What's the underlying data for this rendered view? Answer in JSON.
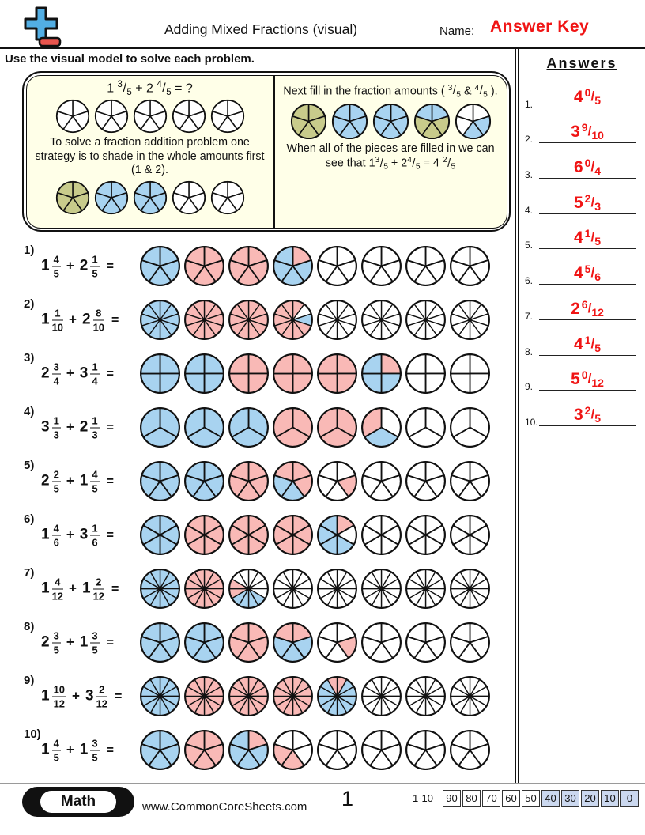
{
  "header": {
    "logo_icon": "plus-minus-math-logo",
    "title": "Adding Mixed Fractions (visual)",
    "name_label": "Name:",
    "answer_key": "Answer Key"
  },
  "instruction": "Use the visual model to solve each problem.",
  "symbols": {
    "plus": "+",
    "equals": "="
  },
  "answers_panel": {
    "heading": "Answers",
    "items": [
      {
        "n": "1.",
        "whole": "4",
        "num": "0",
        "den": "5"
      },
      {
        "n": "2.",
        "whole": "3",
        "num": "9",
        "den": "10"
      },
      {
        "n": "3.",
        "whole": "6",
        "num": "0",
        "den": "4"
      },
      {
        "n": "4.",
        "whole": "5",
        "num": "2",
        "den": "3"
      },
      {
        "n": "5.",
        "whole": "4",
        "num": "1",
        "den": "5"
      },
      {
        "n": "6.",
        "whole": "4",
        "num": "5",
        "den": "6"
      },
      {
        "n": "7.",
        "whole": "2",
        "num": "6",
        "den": "12"
      },
      {
        "n": "8.",
        "whole": "4",
        "num": "1",
        "den": "5"
      },
      {
        "n": "9.",
        "whole": "5",
        "num": "0",
        "den": "12"
      },
      {
        "n": "10.",
        "whole": "3",
        "num": "2",
        "den": "5"
      }
    ]
  },
  "example": {
    "title_segments": [
      {
        "t": "1 "
      },
      {
        "f": [
          "3",
          "5"
        ]
      },
      {
        "t": " + 2 "
      },
      {
        "f": [
          "4",
          "5"
        ]
      },
      {
        "t": " = ?"
      }
    ],
    "left_para": "To solve a fraction addition problem one strategy is to shade in the whole amounts first (1 & 2).",
    "right_para1_segments": [
      {
        "t": "Next fill in the fraction amounts ( "
      },
      {
        "f": [
          "3",
          "5"
        ]
      },
      {
        "t": " & "
      },
      {
        "f": [
          "4",
          "5"
        ]
      },
      {
        "t": " )."
      }
    ],
    "right_para2_segments": [
      {
        "t": "When all of the pieces are filled in we can see that 1"
      },
      {
        "f": [
          "3",
          "5"
        ]
      },
      {
        "t": " + 2"
      },
      {
        "f": [
          "4",
          "5"
        ]
      },
      {
        "t": " = 4 "
      },
      {
        "f": [
          "2",
          "5"
        ]
      }
    ],
    "rows": {
      "top": [
        "wwwww",
        "wwwww",
        "wwwww",
        "wwwww",
        "wwwww"
      ],
      "bottom": [
        "ooooo",
        "bbbbb",
        "bbbbb",
        "wwwww",
        "wwwww"
      ],
      "result": [
        "ooooo",
        "bbbbb",
        "bbbbb",
        "booob",
        "wbbww"
      ]
    }
  },
  "problems": [
    {
      "label": "1)",
      "whole1": "1",
      "num1": "4",
      "den1": "5",
      "whole2": "2",
      "num2": "1",
      "den2": "5",
      "circles": [
        "bbbbb",
        "ppppp",
        "ppppp",
        "pbbbb",
        "wwwww",
        "wwwww",
        "wwwww",
        "wwwww"
      ]
    },
    {
      "label": "2)",
      "whole1": "1",
      "num1": "1",
      "den1": "10",
      "whole2": "2",
      "num2": "8",
      "den2": "10",
      "circles": [
        "bbbbbbbbbb",
        "pppppppppp",
        "pppppppppp",
        "pwbppppppp",
        "wwwwwwwwww",
        "wwwwwwwwww",
        "wwwwwwwwww",
        "wwwwwwwwww"
      ]
    },
    {
      "label": "3)",
      "whole1": "2",
      "num1": "3",
      "den1": "4",
      "whole2": "3",
      "num2": "1",
      "den2": "4",
      "circles": [
        "bbbb",
        "bbbb",
        "pppp",
        "pppp",
        "pppp",
        "pbbb",
        "wwww",
        "wwww"
      ]
    },
    {
      "label": "4)",
      "whole1": "3",
      "num1": "1",
      "den1": "3",
      "whole2": "2",
      "num2": "1",
      "den2": "3",
      "circles": [
        "bbb",
        "bbb",
        "bbb",
        "ppp",
        "ppp",
        "wbp",
        "www",
        "www"
      ]
    },
    {
      "label": "5)",
      "whole1": "2",
      "num1": "2",
      "den1": "5",
      "whole2": "1",
      "num2": "4",
      "den2": "5",
      "circles": [
        "bbbbb",
        "bbbbb",
        "ppppp",
        "ppbbp",
        "wpwww",
        "wwwww",
        "wwwww",
        "wwwww"
      ]
    },
    {
      "label": "6)",
      "whole1": "1",
      "num1": "4",
      "den1": "6",
      "whole2": "3",
      "num2": "1",
      "den2": "6",
      "circles": [
        "bbbbbb",
        "pppppp",
        "pppppp",
        "pppppp",
        "pwbbbb",
        "wwwwww",
        "wwwwww",
        "wwwwww"
      ]
    },
    {
      "label": "7)",
      "whole1": "1",
      "num1": "4",
      "den1": "12",
      "whole2": "1",
      "num2": "2",
      "den2": "12",
      "circles": [
        "bbbbbbbbbbbb",
        "pppppppppppp",
        "wwwwbbbbppww",
        "wwwwwwwwwwww",
        "wwwwwwwwwwww",
        "wwwwwwwwwwww",
        "wwwwwwwwwwww",
        "wwwwwwwwwwww"
      ]
    },
    {
      "label": "8)",
      "whole1": "2",
      "num1": "3",
      "den1": "5",
      "whole2": "1",
      "num2": "3",
      "den2": "5",
      "circles": [
        "bbbbb",
        "bbbbb",
        "ppppp",
        "pbbbp",
        "wpwww",
        "wwwww",
        "wwwww",
        "wwwww"
      ]
    },
    {
      "label": "9)",
      "whole1": "1",
      "num1": "10",
      "den1": "12",
      "whole2": "3",
      "num2": "2",
      "den2": "12",
      "circles": [
        "bbbbbbbbbbbb",
        "pppppppppppp",
        "pppppppppppp",
        "pppppppppppp",
        "pbbbbbbbbbbp",
        "wwwwwwwwwwww",
        "wwwwwwwwwwww",
        "wwwwwwwwwwww"
      ]
    },
    {
      "label": "10)",
      "whole1": "1",
      "num1": "4",
      "den1": "5",
      "whole2": "1",
      "num2": "3",
      "den2": "5",
      "circles": [
        "bbbbb",
        "ppppp",
        "pbbbb",
        "wwppw",
        "wwwww",
        "wwwww",
        "wwwww",
        "wwwww"
      ]
    }
  ],
  "footer": {
    "brand": "Math",
    "url": "www.CommonCoreSheets.com",
    "page_number": "1",
    "range_label": "1-10",
    "scores": [
      {
        "label": "90",
        "highlight": false
      },
      {
        "label": "80",
        "highlight": false
      },
      {
        "label": "70",
        "highlight": false
      },
      {
        "label": "60",
        "highlight": false
      },
      {
        "label": "50",
        "highlight": false
      },
      {
        "label": "40",
        "highlight": true
      },
      {
        "label": "30",
        "highlight": true
      },
      {
        "label": "20",
        "highlight": true
      },
      {
        "label": "10",
        "highlight": true
      },
      {
        "label": "0",
        "highlight": true
      }
    ]
  },
  "colors": {
    "answer_red": "#F01414",
    "mark_red": "#E32222",
    "slice_blue": "#A8D3F0",
    "slice_pink": "#F9B9B6",
    "slice_olive": "#C8CB8B",
    "slice_white": "#FFFFFF",
    "example_bg": "#FFFFE8",
    "score_highlight": "#CBD8EF",
    "logo_blue": "#52AEE4",
    "logo_red": "#E9554E"
  }
}
